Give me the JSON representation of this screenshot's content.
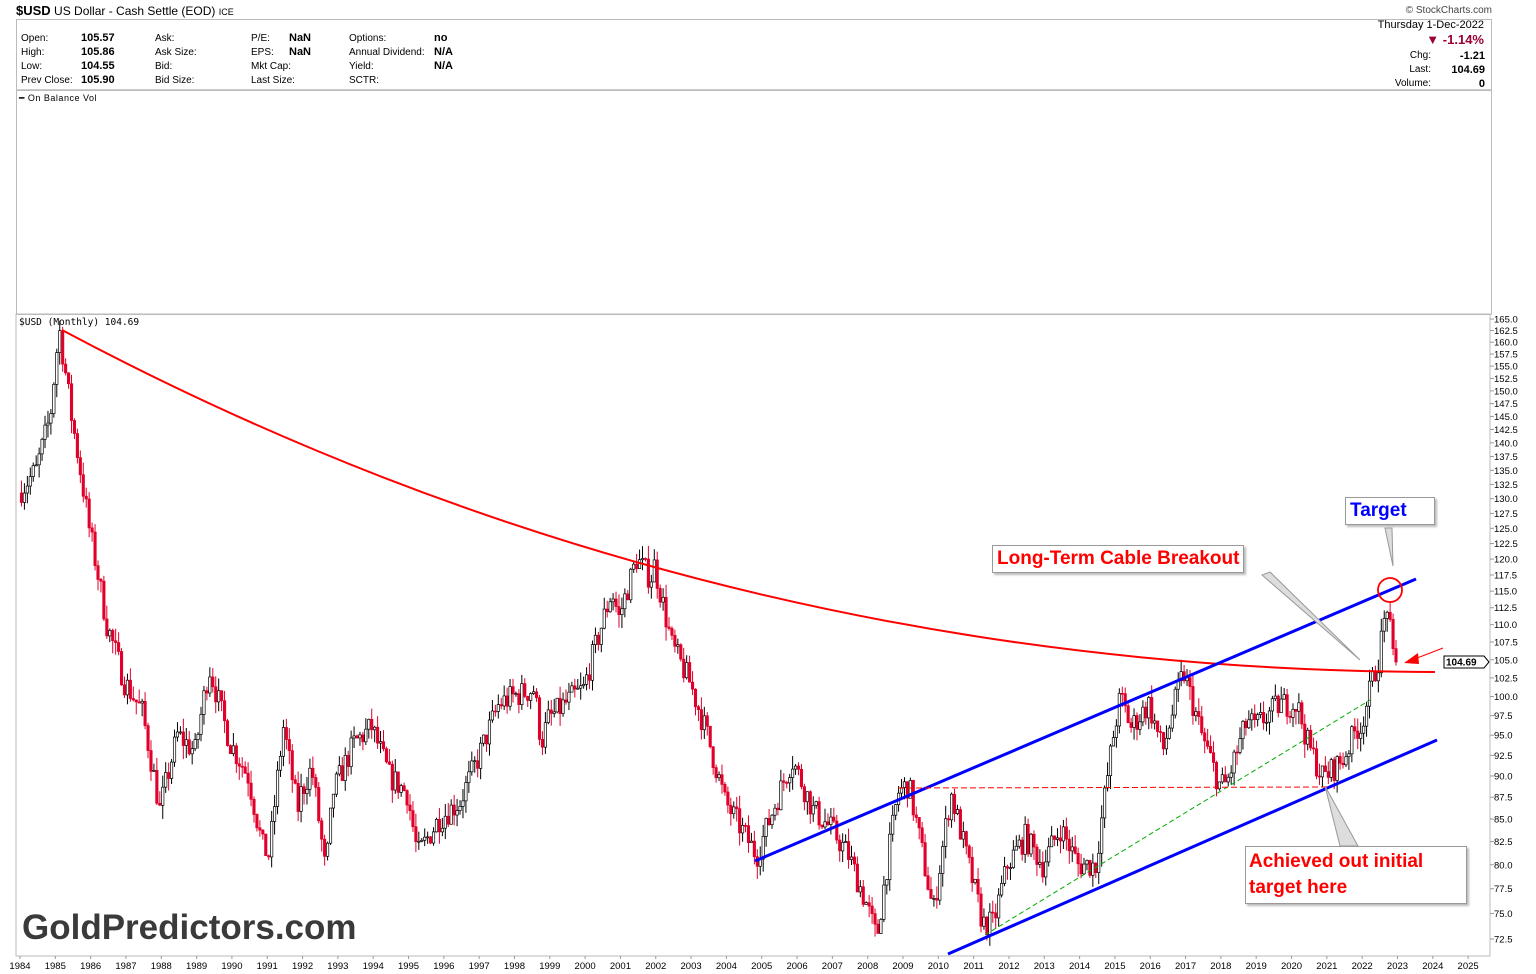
{
  "header": {
    "symbol": "$USD",
    "name": "US Dollar - Cash Settle (EOD)",
    "exchange": "ICE",
    "copyright": "© StockCharts.com",
    "date": "Thursday  1-Dec-2022",
    "pct_change": "-1.14%",
    "fields": [
      {
        "label": "Open:",
        "value": "105.57"
      },
      {
        "label": "High:",
        "value": "105.86"
      },
      {
        "label": "Low:",
        "value": "104.55"
      },
      {
        "label": "Prev Close:",
        "value": "105.90"
      },
      {
        "label": "Ask:",
        "value": ""
      },
      {
        "label": "Ask Size:",
        "value": ""
      },
      {
        "label": "Bid:",
        "value": ""
      },
      {
        "label": "Bid Size:",
        "value": ""
      },
      {
        "label": "P/E:",
        "value": "NaN"
      },
      {
        "label": "EPS:",
        "value": "NaN"
      },
      {
        "label": "Mkt Cap:",
        "value": ""
      },
      {
        "label": "Last Size:",
        "value": ""
      },
      {
        "label": "Options:",
        "value": "no"
      },
      {
        "label": "Annual Dividend:",
        "value": "N/A"
      },
      {
        "label": "Yield:",
        "value": "N/A"
      },
      {
        "label": "SCTR:",
        "value": ""
      }
    ],
    "right": [
      {
        "label": "Chg:",
        "value": "-1.21"
      },
      {
        "label": "Last:",
        "value": "104.69"
      },
      {
        "label": "Volume:",
        "value": "0"
      }
    ]
  },
  "obv_label": "On Balance Vol",
  "price_label": "$USD (Monthly) 104.69",
  "last_price_tag": "104.69",
  "watermark": "GoldPredictors.com",
  "annotations": {
    "breakout": "Long-Term Cable Breakout",
    "target": "Target",
    "achieved_line1": "Achieved out initial",
    "achieved_line2": "target here"
  },
  "colors": {
    "down": "#e0002a",
    "up": "#000000",
    "arc": "#ff0000",
    "channel": "#0000ff",
    "support": "#00aa00",
    "pct": "#990033"
  },
  "chart_data": {
    "type": "candlestick",
    "interval": "monthly",
    "yscale": "log",
    "ylim": [
      72.5,
      165
    ],
    "yticks": [
      "72.5",
      "75.0",
      "77.5",
      "80.0",
      "82.5",
      "85.0",
      "87.5",
      "90.0",
      "92.5",
      "95.0",
      "97.5",
      "100.0",
      "102.5",
      "105.0",
      "107.5",
      "110.0",
      "112.5",
      "115.0",
      "117.5",
      "120.0",
      "122.5",
      "125.0",
      "127.5",
      "130.0",
      "132.5",
      "135.0",
      "137.5",
      "140.0",
      "142.5",
      "145.0",
      "147.5",
      "150.0",
      "152.5",
      "155.0",
      "157.5",
      "160.0",
      "162.5",
      "165.0"
    ],
    "xticks": [
      "1984",
      "1985",
      "1986",
      "1987",
      "1988",
      "1989",
      "1990",
      "1991",
      "1992",
      "1993",
      "1994",
      "1995",
      "1996",
      "1997",
      "1998",
      "1999",
      "2000",
      "2001",
      "2002",
      "2003",
      "2004",
      "2005",
      "2006",
      "2007",
      "2008",
      "2009",
      "2010",
      "2011",
      "2012",
      "2013",
      "2014",
      "2015",
      "2016",
      "2017",
      "2018",
      "2019",
      "2020",
      "2021",
      "2022",
      "2023",
      "2024",
      "2025"
    ],
    "approx_path": [
      [
        1984.0,
        131
      ],
      [
        1984.5,
        135
      ],
      [
        1984.9,
        145
      ],
      [
        1985.15,
        163
      ],
      [
        1985.5,
        145
      ],
      [
        1986.0,
        125
      ],
      [
        1986.5,
        110
      ],
      [
        1987.0,
        102
      ],
      [
        1987.5,
        98
      ],
      [
        1988.0,
        86
      ],
      [
        1988.5,
        95
      ],
      [
        1989.0,
        93
      ],
      [
        1989.4,
        104
      ],
      [
        1989.8,
        97
      ],
      [
        1990.0,
        94
      ],
      [
        1990.5,
        90
      ],
      [
        1990.9,
        82
      ],
      [
        1991.1,
        81
      ],
      [
        1991.5,
        96
      ],
      [
        1991.9,
        86
      ],
      [
        1992.0,
        88
      ],
      [
        1992.3,
        91
      ],
      [
        1992.7,
        79
      ],
      [
        1992.9,
        88
      ],
      [
        1993.5,
        94
      ],
      [
        1994.0,
        96
      ],
      [
        1994.5,
        90
      ],
      [
        1995.0,
        88
      ],
      [
        1995.3,
        81
      ],
      [
        1995.9,
        85
      ],
      [
        1996.5,
        87
      ],
      [
        1997.0,
        92
      ],
      [
        1997.6,
        99
      ],
      [
        1998.0,
        100
      ],
      [
        1998.6,
        101
      ],
      [
        1998.8,
        94
      ],
      [
        1999.0,
        97
      ],
      [
        1999.7,
        100
      ],
      [
        2000.0,
        101
      ],
      [
        2000.8,
        115
      ],
      [
        2001.0,
        111
      ],
      [
        2001.5,
        120
      ],
      [
        2001.9,
        117
      ],
      [
        2002.0,
        119
      ],
      [
        2002.5,
        107
      ],
      [
        2003.0,
        102
      ],
      [
        2003.5,
        95
      ],
      [
        2004.0,
        87
      ],
      [
        2004.9,
        81
      ],
      [
        2005.0,
        82
      ],
      [
        2005.9,
        92
      ],
      [
        2006.5,
        86
      ],
      [
        2007.0,
        84
      ],
      [
        2007.5,
        81
      ],
      [
        2008.0,
        76
      ],
      [
        2008.3,
        72.5
      ],
      [
        2008.9,
        88
      ],
      [
        2009.2,
        89
      ],
      [
        2009.9,
        75
      ],
      [
        2010.4,
        88
      ],
      [
        2010.9,
        80
      ],
      [
        2011.3,
        74
      ],
      [
        2011.6,
        74
      ],
      [
        2012.0,
        80
      ],
      [
        2012.5,
        83
      ],
      [
        2013.0,
        80
      ],
      [
        2013.5,
        84
      ],
      [
        2014.0,
        80
      ],
      [
        2014.5,
        80
      ],
      [
        2015.0,
        95
      ],
      [
        2015.2,
        100
      ],
      [
        2015.5,
        96
      ],
      [
        2016.0,
        99
      ],
      [
        2016.4,
        93
      ],
      [
        2016.9,
        102
      ],
      [
        2017.0,
        103
      ],
      [
        2017.5,
        95
      ],
      [
        2018.0,
        89
      ],
      [
        2018.2,
        89
      ],
      [
        2018.8,
        97
      ],
      [
        2019.0,
        96
      ],
      [
        2019.7,
        99
      ],
      [
        2020.2,
        99
      ],
      [
        2020.5,
        94
      ],
      [
        2020.9,
        90
      ],
      [
        2021.0,
        90
      ],
      [
        2021.5,
        92
      ],
      [
        2021.9,
        96
      ],
      [
        2022.0,
        96
      ],
      [
        2022.5,
        105
      ],
      [
        2022.75,
        113
      ],
      [
        2022.92,
        104.69
      ]
    ]
  }
}
